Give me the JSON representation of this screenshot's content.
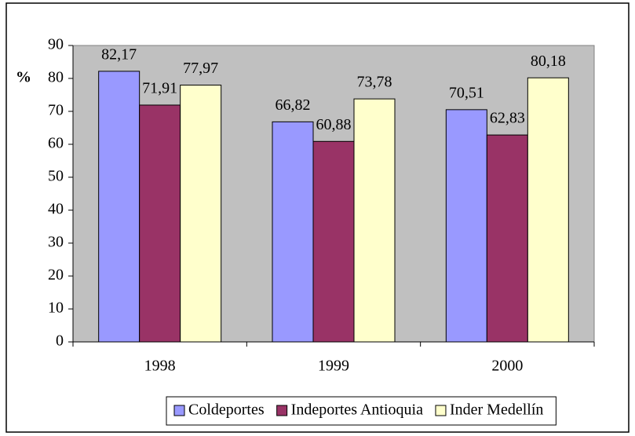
{
  "chart_data": {
    "type": "bar",
    "y_label": "%",
    "categories": [
      "1998",
      "1999",
      "2000"
    ],
    "series": [
      {
        "name": "Coldeportes",
        "color": "#9999ff",
        "values": [
          82.17,
          66.82,
          70.51
        ],
        "value_labels": [
          "82,17",
          "66,82",
          "70,51"
        ]
      },
      {
        "name": "Indeportes Antioquia",
        "color": "#993366",
        "values": [
          71.91,
          60.88,
          62.83
        ],
        "value_labels": [
          "71,91",
          "60,88",
          "62,83"
        ]
      },
      {
        "name": "Inder Medellín",
        "color": "#ffffcc",
        "values": [
          77.97,
          73.78,
          80.18
        ],
        "value_labels": [
          "77,97",
          "73,78",
          "80,18"
        ]
      }
    ],
    "ylim": [
      0,
      90
    ],
    "yticks": [
      0,
      10,
      20,
      30,
      40,
      50,
      60,
      70,
      80,
      90
    ],
    "plot_background": "#c0c0c0",
    "legend": "bottom"
  }
}
